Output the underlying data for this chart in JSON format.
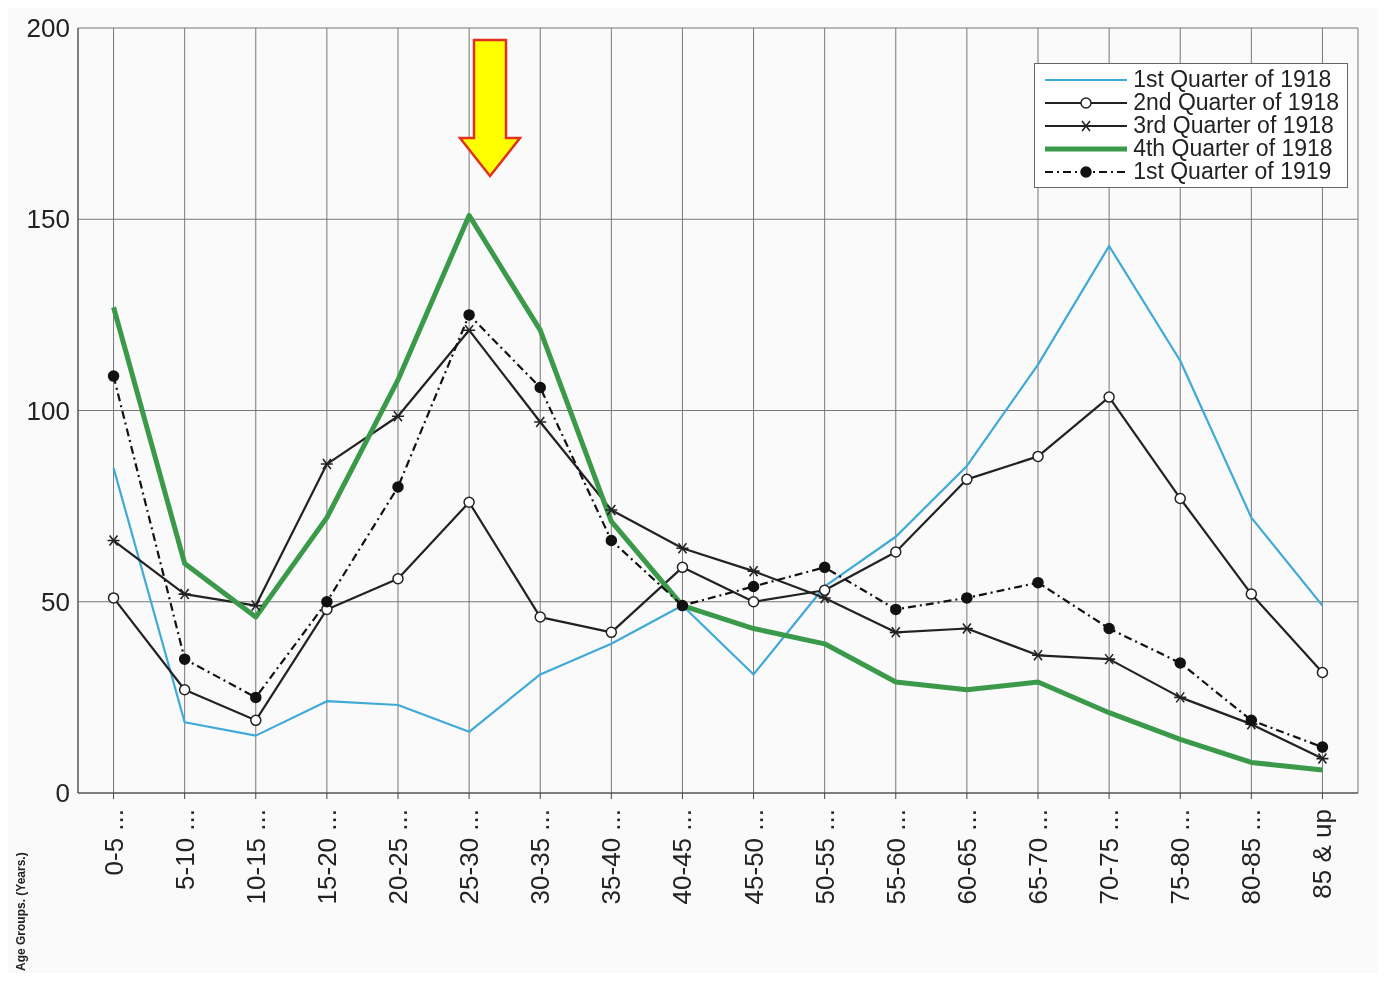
{
  "chart_data": {
    "type": "line",
    "ylabel": "Age Groups. (Years.)",
    "categories": [
      "0-5 ...",
      "5-10 ...",
      "10-15 ...",
      "15-20 ...",
      "20-25 ...",
      "25-30 ...",
      "30-35 ...",
      "35-40 ...",
      "40-45 ...",
      "45-50 ...",
      "50-55 ...",
      "55-60 ...",
      "60-65 ...",
      "65-70 ...",
      "70-75 ...",
      "75-80 ...",
      "80-85 ...",
      "85 & up"
    ],
    "series": [
      {
        "name": "1st Quarter of 1918",
        "color": "#3fa9d8",
        "marker": "none",
        "line_style": "solid",
        "values": [
          85,
          18.5,
          15,
          24,
          23,
          16,
          31,
          39,
          49,
          31,
          54,
          67,
          85.5,
          112,
          143,
          113,
          72,
          49
        ]
      },
      {
        "name": "2nd Quarter of 1918",
        "color": "#222222",
        "marker": "circle",
        "line_style": "solid",
        "values": [
          51,
          27,
          19,
          48,
          56,
          76,
          46,
          42,
          59,
          50,
          53,
          63,
          82,
          88,
          103.5,
          77,
          52,
          31.5
        ]
      },
      {
        "name": "3rd Quarter of 1918",
        "color": "#222222",
        "marker": "cross",
        "line_style": "solid",
        "values": [
          66,
          52,
          49,
          86,
          98.5,
          121,
          97,
          74,
          64,
          58,
          51,
          42,
          43,
          36,
          35,
          25,
          18,
          9
        ]
      },
      {
        "name": "4th Quarter of 1918",
        "color": "#3a9a4a",
        "marker": "none",
        "line_style": "solid",
        "values": [
          127,
          60,
          46,
          72,
          108,
          151,
          121,
          71,
          49,
          43,
          39,
          29,
          27,
          29,
          21,
          14,
          8,
          6
        ]
      },
      {
        "name": "1st Quarter of 1919",
        "color": "#111111",
        "marker": "circle",
        "line_style": "dashed",
        "values": [
          109,
          35,
          25,
          50,
          80,
          125,
          106,
          66,
          49,
          54,
          59,
          48,
          51,
          55,
          43,
          34,
          19,
          12
        ]
      }
    ],
    "ylim": [
      0,
      200
    ],
    "yticks": [
      0,
      50,
      100,
      150,
      200
    ],
    "grid": true,
    "legend": "top right"
  }
}
